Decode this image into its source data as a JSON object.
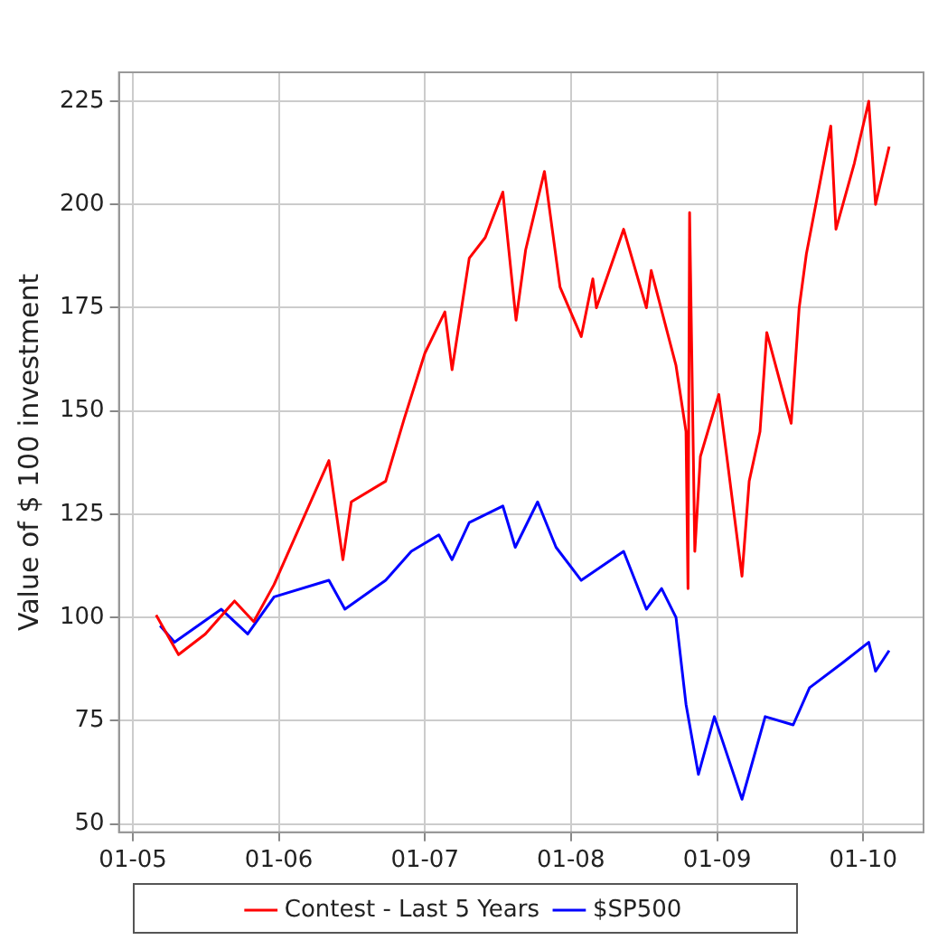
{
  "chart_data": {
    "type": "line",
    "ylabel": "Value of $ 100 investment",
    "xlim": [
      "2004-11-27",
      "2010-06-01"
    ],
    "xticks": [
      {
        "value": "2005-01-01",
        "label": "01-05"
      },
      {
        "value": "2006-01-01",
        "label": "01-06"
      },
      {
        "value": "2007-01-01",
        "label": "01-07"
      },
      {
        "value": "2008-01-01",
        "label": "01-08"
      },
      {
        "value": "2009-01-01",
        "label": "01-09"
      },
      {
        "value": "2010-01-01",
        "label": "01-10"
      }
    ],
    "ylim": [
      48,
      232
    ],
    "yticks": [
      50,
      75,
      100,
      125,
      150,
      175,
      200,
      225
    ],
    "grid": true,
    "legend": "bottom",
    "marker": "none",
    "line_style": "solid",
    "series": [
      {
        "name": "Contest - Last 5 Years",
        "color": "#ff0000",
        "x": [
          "2005-02-28",
          "2005-04-25",
          "2005-07-01",
          "2005-09-12",
          "2005-10-30",
          "2005-12-20",
          "2006-05-06",
          "2006-06-10",
          "2006-07-01",
          "2006-09-25",
          "2006-11-10",
          "2007-01-01",
          "2007-02-20",
          "2007-03-10",
          "2007-04-22",
          "2007-06-01",
          "2007-07-15",
          "2007-08-17",
          "2007-09-10",
          "2007-10-27",
          "2007-12-05",
          "2008-01-27",
          "2008-02-25",
          "2008-03-05",
          "2008-05-12",
          "2008-07-08",
          "2008-07-20",
          "2008-09-20",
          "2008-10-15",
          "2008-10-20",
          "2008-10-24",
          "2008-11-06",
          "2008-11-20",
          "2009-01-05",
          "2009-01-25",
          "2009-03-04",
          "2009-03-22",
          "2009-04-18",
          "2009-05-05",
          "2009-07-05",
          "2009-07-25",
          "2009-08-12",
          "2009-10-12",
          "2009-10-25",
          "2009-12-10",
          "2010-01-15",
          "2010-02-01",
          "2010-03-07"
        ],
        "values": [
          100.6,
          91,
          96,
          104,
          99,
          108,
          138,
          114,
          128,
          133,
          148,
          164,
          174,
          160,
          187,
          192,
          203,
          172,
          189,
          208,
          180,
          168,
          182,
          175,
          194,
          175,
          184,
          161,
          145,
          107,
          198,
          116,
          139,
          154,
          139,
          110,
          133,
          145,
          169,
          147,
          175,
          188,
          219,
          194,
          210,
          225,
          200,
          214
        ]
      },
      {
        "name": "$SP500",
        "color": "#0000ff",
        "x": [
          "2005-03-10",
          "2005-04-15",
          "2005-08-10",
          "2005-10-15",
          "2005-12-20",
          "2006-05-06",
          "2006-06-15",
          "2006-09-25",
          "2006-11-28",
          "2007-02-05",
          "2007-03-10",
          "2007-04-22",
          "2007-07-15",
          "2007-08-15",
          "2007-10-10",
          "2007-11-25",
          "2008-01-27",
          "2008-05-12",
          "2008-07-08",
          "2008-08-15",
          "2008-09-20",
          "2008-10-15",
          "2008-11-15",
          "2008-12-25",
          "2009-03-04",
          "2009-05-01",
          "2009-07-10",
          "2009-08-20",
          "2009-11-10",
          "2010-01-15",
          "2010-02-01",
          "2010-03-07"
        ],
        "values": [
          98,
          94,
          102,
          96,
          105,
          109,
          102,
          109,
          116,
          120,
          114,
          123,
          127,
          117,
          128,
          117,
          109,
          116,
          102,
          107,
          100,
          79,
          62,
          76,
          56,
          76,
          74,
          83,
          89,
          94,
          87,
          92
        ]
      }
    ]
  }
}
